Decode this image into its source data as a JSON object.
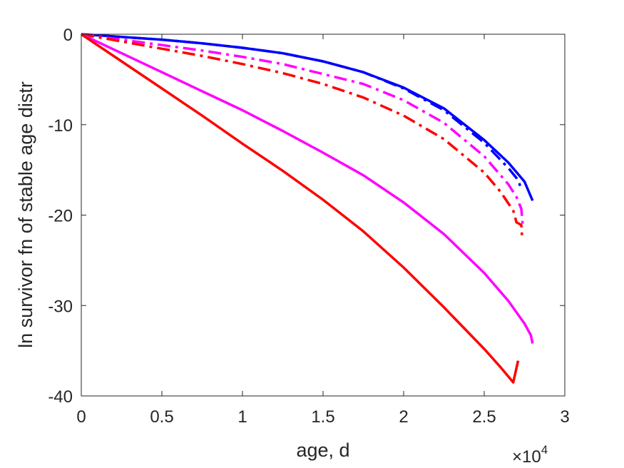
{
  "chart_data": {
    "type": "line",
    "title": "",
    "xlabel": "age, d",
    "ylabel": "ln survivor fn of stable age distr",
    "x_multiplier": "×10",
    "x_multiplier_exp": "4",
    "xlim": [
      0,
      30000
    ],
    "ylim": [
      -40,
      0
    ],
    "xticks": [
      0,
      5000,
      10000,
      15000,
      20000,
      25000,
      30000
    ],
    "xtick_labels": [
      "0",
      "0.5",
      "1",
      "1.5",
      "2",
      "2.5",
      "3"
    ],
    "yticks": [
      0,
      -10,
      -20,
      -30,
      -40
    ],
    "ytick_labels": [
      "0",
      "-10",
      "-20",
      "-30",
      "-40"
    ],
    "grid": false,
    "series": [
      {
        "color": "#0000ff",
        "dash": "solid",
        "x": [
          0,
          2500,
          5000,
          7500,
          10000,
          12500,
          15000,
          17500,
          20000,
          22500,
          25000,
          26500,
          27500,
          28000
        ],
        "y": [
          0,
          -0.3,
          -0.6,
          -1.0,
          -1.5,
          -2.1,
          -3.0,
          -4.2,
          -5.9,
          -8.2,
          -11.7,
          -14.2,
          -16.3,
          -18.4
        ]
      },
      {
        "color": "#0000ff",
        "dash": "dashdot",
        "x": [
          0,
          2500,
          5000,
          7500,
          10000,
          12500,
          15000,
          17500,
          20000,
          22500,
          25000,
          26500,
          27000,
          27200,
          27300
        ],
        "y": [
          0,
          -0.3,
          -0.6,
          -1.0,
          -1.5,
          -2.1,
          -3.0,
          -4.2,
          -6.0,
          -8.4,
          -12.0,
          -14.8,
          -15.9,
          -16.6,
          -17.3
        ]
      },
      {
        "color": "#ff00ff",
        "dash": "dashdot",
        "x": [
          0,
          2500,
          5000,
          7500,
          10000,
          12500,
          15000,
          17500,
          20000,
          22500,
          25000,
          26500,
          27000,
          27300,
          27400
        ],
        "y": [
          0,
          -0.6,
          -1.2,
          -1.8,
          -2.5,
          -3.3,
          -4.4,
          -5.5,
          -7.3,
          -9.8,
          -13.5,
          -16.6,
          -18.0,
          -19.3,
          -21.3
        ]
      },
      {
        "color": "#ff0000",
        "dash": "dashdot",
        "x": [
          0,
          2500,
          5000,
          7500,
          10000,
          12500,
          15000,
          17500,
          20000,
          22500,
          25000,
          26000,
          26800,
          27000,
          27300,
          27350
        ],
        "y": [
          0,
          -0.8,
          -1.6,
          -2.4,
          -3.3,
          -4.3,
          -5.5,
          -7.0,
          -9.0,
          -11.6,
          -15.3,
          -17.4,
          -19.5,
          -20.8,
          -21.1,
          -22.5
        ]
      },
      {
        "color": "#ff00ff",
        "dash": "solid",
        "x": [
          0,
          2500,
          5000,
          7500,
          10000,
          12500,
          15000,
          17500,
          20000,
          22500,
          25000,
          26500,
          27500,
          27900,
          28000
        ],
        "y": [
          0,
          -2.1,
          -4.2,
          -6.3,
          -8.4,
          -10.7,
          -13.1,
          -15.6,
          -18.6,
          -22.1,
          -26.4,
          -29.5,
          -32.0,
          -33.3,
          -34.2
        ]
      },
      {
        "color": "#ff0000",
        "dash": "solid",
        "x": [
          0,
          2500,
          5000,
          7500,
          10000,
          12500,
          15000,
          17500,
          20000,
          22500,
          25000,
          26000,
          26800,
          27100
        ],
        "y": [
          0,
          -3.0,
          -6.0,
          -9.0,
          -12.1,
          -15.1,
          -18.3,
          -21.8,
          -25.8,
          -30.2,
          -34.8,
          -36.8,
          -38.5,
          -36.1
        ]
      }
    ]
  }
}
